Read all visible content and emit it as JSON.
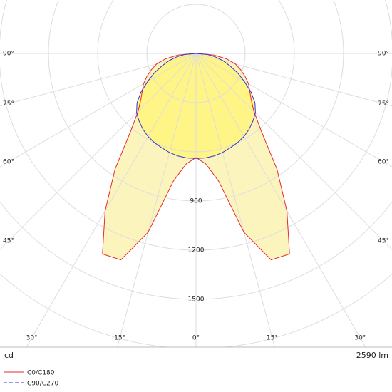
{
  "chart_data": {
    "type": "polar",
    "angles": [
      0,
      5,
      10,
      15,
      20,
      25,
      30,
      35,
      40,
      45,
      50,
      55,
      60,
      65,
      70,
      75,
      80,
      85,
      90
    ],
    "series": [
      {
        "name": "C0/C180",
        "color": "#e8282b",
        "dash": false,
        "values": [
          635,
          675,
          790,
          1130,
          1340,
          1350,
          1110,
          860,
          620,
          500,
          440,
          400,
          370,
          330,
          290,
          250,
          190,
          110,
          0
        ]
      },
      {
        "name": "C90/C270",
        "color": "#3434cc",
        "dash": true,
        "values": [
          640,
          640,
          635,
          625,
          612,
          600,
          585,
          565,
          540,
          513,
          470,
          410,
          340,
          280,
          220,
          170,
          120,
          70,
          0
        ]
      }
    ],
    "rlim": [
      0,
      1800
    ],
    "rticks": [
      {
        "value": 300,
        "label": null
      },
      {
        "value": 600,
        "label": null
      },
      {
        "value": 900,
        "label": "900"
      },
      {
        "value": 1200,
        "label": "1200"
      },
      {
        "value": 1500,
        "label": "1500"
      },
      {
        "value": 1800,
        "label": null
      }
    ],
    "angle_ticks": [
      {
        "value": 0,
        "label": "0°"
      },
      {
        "value": 15,
        "label": "15°"
      },
      {
        "value": 30,
        "label": "30°"
      },
      {
        "value": 45,
        "label": "45°"
      },
      {
        "value": 60,
        "label": "60°"
      },
      {
        "value": 75,
        "label": "75°"
      },
      {
        "value": 90,
        "label": "90°"
      }
    ],
    "unit": "cd",
    "flux": "2590 lm"
  }
}
